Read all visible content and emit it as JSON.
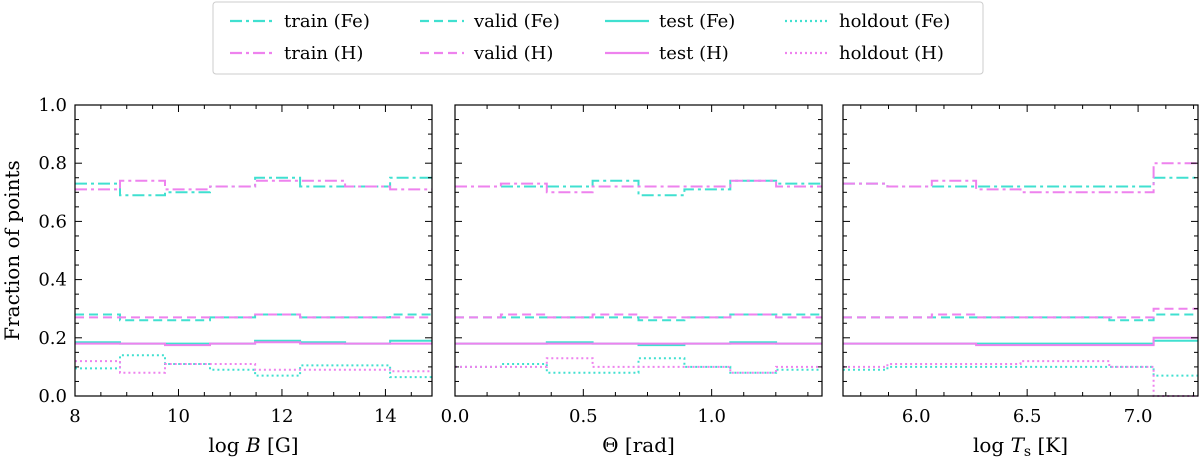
{
  "chart_data": {
    "type": "line",
    "step": true,
    "ylabel": "Fraction of points",
    "ylim": [
      0.0,
      1.0
    ],
    "yticks": [
      "0.0",
      "0.2",
      "0.4",
      "0.6",
      "0.8",
      "1.0"
    ],
    "yticks_values": [
      0.0,
      0.2,
      0.4,
      0.6,
      0.8,
      1.0
    ],
    "series_styles": [
      {
        "key": "train_fe",
        "name": "train (Fe)",
        "color": "#40e0d0",
        "dash": "12 4 3 4"
      },
      {
        "key": "train_h",
        "name": "train (H)",
        "color": "#ee82ee",
        "dash": "12 4 3 4"
      },
      {
        "key": "valid_fe",
        "name": "valid (Fe)",
        "color": "#40e0d0",
        "dash": "9 5"
      },
      {
        "key": "valid_h",
        "name": "valid (H)",
        "color": "#ee82ee",
        "dash": "9 5"
      },
      {
        "key": "test_fe",
        "name": "test (Fe)",
        "color": "#40e0d0",
        "dash": ""
      },
      {
        "key": "test_h",
        "name": "test (H)",
        "color": "#ee82ee",
        "dash": ""
      },
      {
        "key": "holdout_fe",
        "name": "holdout (Fe)",
        "color": "#40e0d0",
        "dash": "2 3"
      },
      {
        "key": "holdout_h",
        "name": "holdout (H)",
        "color": "#ee82ee",
        "dash": "2 3"
      }
    ],
    "panels": [
      {
        "xlabel_pre": "log ",
        "xlabel_var": "B",
        "xlabel_sub": "",
        "xlabel_post": " [G]",
        "xlim": [
          8.0,
          14.9
        ],
        "xticks": [
          "8",
          "10",
          "12",
          "14"
        ],
        "xticks_values": [
          8,
          10,
          12,
          14
        ],
        "bin_edges": [
          8.0,
          8.87,
          9.74,
          10.61,
          11.48,
          12.35,
          13.22,
          14.09,
          14.9
        ],
        "series": {
          "train_fe": [
            0.73,
            0.69,
            0.7,
            0.72,
            0.75,
            0.72,
            0.72,
            0.75
          ],
          "train_h": [
            0.71,
            0.74,
            0.71,
            0.72,
            0.74,
            0.74,
            0.72,
            0.71
          ],
          "valid_fe": [
            0.28,
            0.26,
            0.26,
            0.27,
            0.28,
            0.27,
            0.27,
            0.28
          ],
          "valid_h": [
            0.27,
            0.27,
            0.27,
            0.27,
            0.28,
            0.27,
            0.27,
            0.27
          ],
          "test_fe": [
            0.185,
            0.18,
            0.18,
            0.18,
            0.19,
            0.185,
            0.18,
            0.19
          ],
          "test_h": [
            0.18,
            0.18,
            0.175,
            0.18,
            0.185,
            0.18,
            0.18,
            0.18
          ],
          "holdout_fe": [
            0.095,
            0.14,
            0.11,
            0.09,
            0.07,
            0.105,
            0.105,
            0.065
          ],
          "holdout_h": [
            0.12,
            0.08,
            0.11,
            0.11,
            0.09,
            0.09,
            0.09,
            0.085
          ]
        }
      },
      {
        "xlabel_pre": "Θ",
        "xlabel_var": "",
        "xlabel_sub": "",
        "xlabel_post": " [rad]",
        "xlim": [
          0.0,
          1.43
        ],
        "xticks": [
          "0.0",
          "0.5",
          "1.0"
        ],
        "xticks_values": [
          0.0,
          0.5,
          1.0
        ],
        "bin_edges": [
          0.0,
          0.1788,
          0.3575,
          0.5363,
          0.715,
          0.8938,
          1.0725,
          1.2513,
          1.43
        ],
        "series": {
          "train_fe": [
            0.72,
            0.72,
            0.72,
            0.74,
            0.69,
            0.71,
            0.74,
            0.73
          ],
          "train_h": [
            0.72,
            0.73,
            0.7,
            0.72,
            0.72,
            0.72,
            0.74,
            0.72
          ],
          "valid_fe": [
            0.27,
            0.27,
            0.27,
            0.27,
            0.26,
            0.27,
            0.28,
            0.28
          ],
          "valid_h": [
            0.27,
            0.28,
            0.27,
            0.28,
            0.27,
            0.27,
            0.28,
            0.27
          ],
          "test_fe": [
            0.18,
            0.18,
            0.185,
            0.18,
            0.175,
            0.18,
            0.185,
            0.18
          ],
          "test_h": [
            0.18,
            0.18,
            0.18,
            0.18,
            0.18,
            0.18,
            0.18,
            0.18
          ],
          "holdout_fe": [
            0.1,
            0.11,
            0.08,
            0.08,
            0.13,
            0.1,
            0.08,
            0.09
          ],
          "holdout_h": [
            0.1,
            0.1,
            0.13,
            0.1,
            0.1,
            0.1,
            0.08,
            0.1
          ]
        }
      },
      {
        "xlabel_pre": "log ",
        "xlabel_var": "T",
        "xlabel_sub": "s",
        "xlabel_post": " [K]",
        "xlim": [
          5.67,
          7.27
        ],
        "xticks": [
          "6.0",
          "6.5",
          "7.0"
        ],
        "xticks_values": [
          6.0,
          6.5,
          7.0
        ],
        "bin_edges": [
          5.67,
          5.87,
          6.07,
          6.27,
          6.47,
          6.67,
          6.87,
          7.07,
          7.27
        ],
        "series": {
          "train_fe": [
            0.73,
            0.72,
            0.72,
            0.72,
            0.72,
            0.72,
            0.72,
            0.75
          ],
          "train_h": [
            0.73,
            0.72,
            0.74,
            0.71,
            0.7,
            0.7,
            0.7,
            0.8
          ],
          "valid_fe": [
            0.27,
            0.27,
            0.27,
            0.27,
            0.27,
            0.27,
            0.26,
            0.28
          ],
          "valid_h": [
            0.27,
            0.27,
            0.28,
            0.27,
            0.27,
            0.27,
            0.27,
            0.3
          ],
          "test_fe": [
            0.18,
            0.18,
            0.18,
            0.18,
            0.18,
            0.18,
            0.18,
            0.19
          ],
          "test_h": [
            0.18,
            0.18,
            0.18,
            0.175,
            0.175,
            0.175,
            0.175,
            0.2
          ],
          "holdout_fe": [
            0.09,
            0.1,
            0.1,
            0.1,
            0.1,
            0.1,
            0.1,
            0.07
          ],
          "holdout_h": [
            0.1,
            0.11,
            0.11,
            0.11,
            0.12,
            0.12,
            0.1,
            0.0
          ]
        }
      }
    ]
  }
}
